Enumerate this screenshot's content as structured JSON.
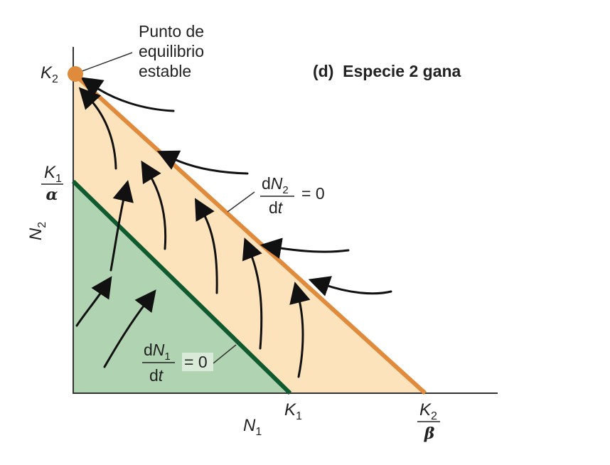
{
  "panel_title": "(d)  Especie 2 gana",
  "stable_point_label": [
    "Punto de",
    "equilibrio",
    "estable"
  ],
  "axes": {
    "x_label": {
      "main": "N",
      "sub": "1"
    },
    "y_label": {
      "main": "N",
      "sub": "2"
    }
  },
  "y_ticks": {
    "k2": {
      "main": "K",
      "sub": "2"
    },
    "k1_over_alpha": {
      "num_main": "K",
      "num_sub": "1",
      "den": "α"
    }
  },
  "x_ticks": {
    "k1": {
      "main": "K",
      "sub": "1"
    },
    "k2_over_beta": {
      "num_main": "K",
      "num_sub": "2",
      "den": "β"
    }
  },
  "isoclines": {
    "dn2": {
      "num_d": "d",
      "num_var": "N",
      "num_sub": "2",
      "den": "dt",
      "den_d": "d",
      "den_t": "t",
      "eq": "= 0",
      "color": "#e08a3c"
    },
    "dn1": {
      "num_d": "d",
      "num_var": "N",
      "num_sub": "1",
      "den_d": "d",
      "den_t": "t",
      "eq": "= 0",
      "color": "#0f5a2e"
    }
  },
  "colors": {
    "region_green": "#b0d3b2",
    "region_tan": "#fde3bc",
    "equilibrium": "#e08a3c",
    "arrows": "#111111"
  }
}
